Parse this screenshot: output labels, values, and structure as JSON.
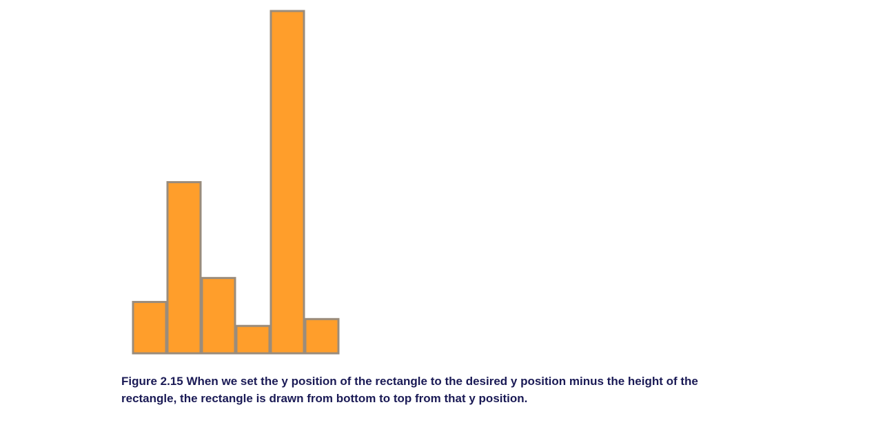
{
  "chart_data": {
    "type": "bar",
    "values": [
      15,
      50,
      22,
      8,
      100,
      10
    ],
    "ylim": [
      0,
      100
    ],
    "bar_color": "#ff9e2b",
    "bar_stroke": "#9a8c7c"
  },
  "caption": {
    "figure_label": "Figure 2.15",
    "text": " When we set the y position of the rectangle to the desired y position minus the height of the rectangle, the rectangle is drawn from bottom to top from that y position."
  }
}
